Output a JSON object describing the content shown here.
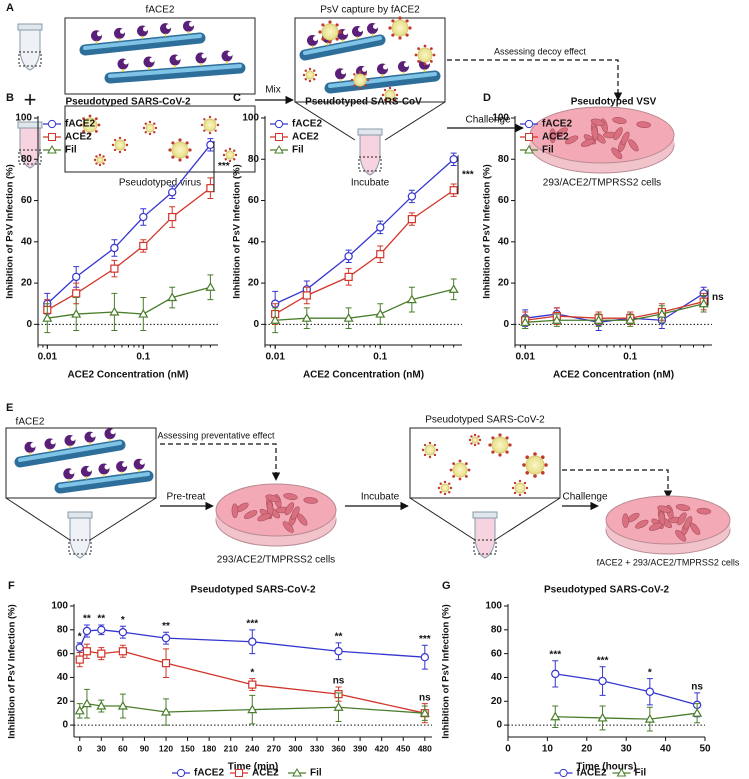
{
  "diagram_a": {
    "label": "A",
    "face2_title": "fACE2",
    "plus": "+",
    "virus_label": "Pseudotyped virus",
    "mix": "Mix",
    "capture_title": "PsV capture by fACE2",
    "incubate": "Incubate",
    "decoy": "Assessing decoy effect",
    "challenge": "Challenge",
    "cells": "293/ACE2/TMPRSS2 cells"
  },
  "diagram_e": {
    "label": "E",
    "face2_title": "fACE2",
    "preventative": "Assessing preventative effect",
    "pretreat": "Pre-treat",
    "cells": "293/ACE2/TMPRSS2 cells",
    "incubate": "Incubate",
    "virus_title": "Pseudotyped SARS-CoV-2",
    "challenge": "Challenge",
    "final_cells": "fACE2 + 293/ACE2/TMPRSS2 cells"
  },
  "chart_data": [
    {
      "panel": "B",
      "type": "line",
      "title": "Pseudotyped SARS-CoV-2",
      "x_label": "ACE2 Concentration (nM)",
      "y_label": "Inhibition of PsV Infection (%)",
      "x": [
        0.01,
        0.02,
        0.05,
        0.1,
        0.2,
        0.5
      ],
      "xlog": true,
      "xlim": [
        0.008,
        0.6
      ],
      "xticks": [
        0.01,
        0.1
      ],
      "ylim": [
        -10,
        100
      ],
      "yticks": [
        0,
        20,
        40,
        60,
        80,
        100
      ],
      "legend": "upper-left",
      "comparison_label": "***",
      "series": [
        {
          "name": "fACE2",
          "color": "#3535d0",
          "marker": "circle",
          "values": [
            10,
            23,
            37,
            52,
            64,
            87
          ],
          "errors": [
            5,
            5,
            4,
            4,
            3,
            3
          ]
        },
        {
          "name": "ACE2",
          "color": "#d2352a",
          "marker": "square",
          "values": [
            7,
            15,
            27,
            38,
            52,
            66
          ],
          "errors": [
            5,
            5,
            4,
            3,
            5,
            5
          ]
        },
        {
          "name": "Fil",
          "color": "#4a7d2b",
          "marker": "triangle",
          "values": [
            3,
            5,
            6,
            5,
            13,
            18
          ],
          "errors": [
            7,
            8,
            9,
            8,
            5,
            6
          ]
        }
      ]
    },
    {
      "panel": "C",
      "type": "line",
      "title": "Pseudotyped SARS-CoV",
      "x_label": "ACE2 Concentration (nM)",
      "y_label": "Inhibition of PsV Infection (%)",
      "x": [
        0.01,
        0.02,
        0.05,
        0.1,
        0.2,
        0.5
      ],
      "xlog": true,
      "xlim": [
        0.008,
        0.6
      ],
      "xticks": [
        0.01,
        0.1
      ],
      "ylim": [
        -10,
        100
      ],
      "yticks": [
        0,
        20,
        40,
        60,
        80,
        100
      ],
      "legend": "upper-left",
      "comparison_label": "***",
      "series": [
        {
          "name": "fACE2",
          "color": "#3535d0",
          "marker": "circle",
          "values": [
            10,
            17,
            33,
            47,
            62,
            80
          ],
          "errors": [
            6,
            4,
            3,
            3,
            3,
            3
          ]
        },
        {
          "name": "ACE2",
          "color": "#d2352a",
          "marker": "square",
          "values": [
            5,
            14,
            23,
            34,
            51,
            65
          ],
          "errors": [
            5,
            4,
            4,
            4,
            3,
            3
          ]
        },
        {
          "name": "Fil",
          "color": "#4a7d2b",
          "marker": "triangle",
          "values": [
            2,
            3,
            3,
            5,
            12,
            17
          ],
          "errors": [
            6,
            5,
            5,
            5,
            6,
            5
          ]
        }
      ]
    },
    {
      "panel": "D",
      "type": "line",
      "title": "Pseudotyped VSV",
      "x_label": "ACE2 Concentration (nM)",
      "y_label": "Inhibition of PsV Infection (%)",
      "x": [
        0.01,
        0.02,
        0.05,
        0.1,
        0.2,
        0.5
      ],
      "xlog": true,
      "xlim": [
        0.008,
        0.6
      ],
      "xticks": [
        0.01,
        0.1
      ],
      "ylim": [
        -10,
        100
      ],
      "yticks": [
        0,
        20,
        40,
        60,
        80,
        100
      ],
      "legend": "upper-left",
      "comparison_label": "ns",
      "series": [
        {
          "name": "fACE2",
          "color": "#3535d0",
          "marker": "circle",
          "values": [
            3,
            5,
            1,
            3,
            2,
            15
          ],
          "errors": [
            4,
            3,
            4,
            3,
            4,
            3
          ]
        },
        {
          "name": "ACE2",
          "color": "#d2352a",
          "marker": "square",
          "values": [
            2,
            4,
            3,
            3,
            6,
            11
          ],
          "errors": [
            4,
            4,
            3,
            3,
            4,
            4
          ]
        },
        {
          "name": "Fil",
          "color": "#4a7d2b",
          "marker": "triangle",
          "values": [
            1,
            2,
            2,
            2,
            5,
            10
          ],
          "errors": [
            3,
            3,
            3,
            3,
            4,
            4
          ]
        }
      ]
    },
    {
      "panel": "F",
      "type": "line",
      "title": "Pseudotyped SARS-CoV-2",
      "x_label": "Time (min)",
      "y_label": "Inhibition of PsV Infection (%)",
      "x": [
        0,
        10,
        30,
        60,
        120,
        240,
        360,
        480
      ],
      "xlog": false,
      "xlim": [
        -8,
        490
      ],
      "xticks": [
        0,
        30,
        60,
        90,
        120,
        150,
        180,
        210,
        240,
        270,
        300,
        330,
        360,
        390,
        420,
        450,
        480
      ],
      "ylim": [
        -10,
        100
      ],
      "yticks": [
        0,
        20,
        40,
        60,
        80,
        100
      ],
      "legend": "bottom",
      "series": [
        {
          "name": "fACE2",
          "color": "#3535d0",
          "marker": "circle",
          "values": [
            65,
            79,
            80,
            78,
            73,
            70,
            62,
            57
          ],
          "errors": [
            4,
            5,
            4,
            5,
            5,
            10,
            7,
            10
          ],
          "significance": [
            "*",
            "**",
            "**",
            "*",
            "**",
            "***",
            "**",
            "***"
          ]
        },
        {
          "name": "ACE2",
          "color": "#d2352a",
          "marker": "square",
          "values": [
            55,
            62,
            60,
            62,
            52,
            34,
            26,
            10
          ],
          "errors": [
            6,
            6,
            5,
            5,
            12,
            5,
            6,
            8
          ],
          "significance": [
            null,
            null,
            null,
            null,
            null,
            "*",
            "ns",
            "ns"
          ]
        },
        {
          "name": "Fil",
          "color": "#4a7d2b",
          "marker": "triangle",
          "values": [
            12,
            18,
            16,
            16,
            11,
            13,
            15,
            10
          ],
          "errors": [
            6,
            12,
            5,
            10,
            11,
            12,
            12,
            6
          ]
        }
      ]
    },
    {
      "panel": "G",
      "type": "line",
      "title": "Pseudotyped SARS-CoV-2",
      "x_label": "Time (hours)",
      "y_label": "Inhibition of PsV Infection (%)",
      "x": [
        12,
        24,
        36,
        48
      ],
      "xlog": false,
      "xlim": [
        0,
        50
      ],
      "xticks": [
        0,
        10,
        20,
        30,
        40,
        50
      ],
      "ylim": [
        -10,
        100
      ],
      "yticks": [
        0,
        20,
        40,
        60,
        80,
        100
      ],
      "legend": "bottom",
      "series": [
        {
          "name": "fACE2",
          "color": "#3535d0",
          "marker": "circle",
          "values": [
            43,
            37,
            28,
            17
          ],
          "errors": [
            11,
            12,
            11,
            10
          ],
          "significance": [
            "***",
            "***",
            "*",
            "ns"
          ]
        },
        {
          "name": "Fil",
          "color": "#4a7d2b",
          "marker": "triangle",
          "values": [
            7,
            6,
            5,
            10
          ],
          "errors": [
            9,
            10,
            10,
            8
          ]
        }
      ]
    }
  ]
}
